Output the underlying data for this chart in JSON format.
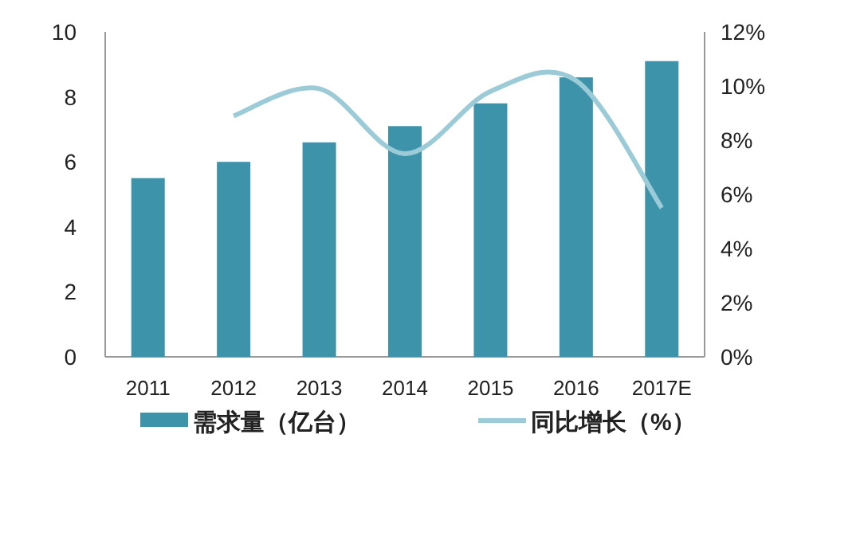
{
  "chart_data": {
    "type": "bar",
    "categories": [
      "2011",
      "2012",
      "2013",
      "2014",
      "2015",
      "2016",
      "2017E"
    ],
    "series": [
      {
        "name": "需求量（亿台）",
        "color": "#3d93aa",
        "values": [
          5.5,
          6.0,
          6.6,
          7.1,
          7.8,
          8.6,
          9.1
        ]
      },
      {
        "name": "同比增长（%）",
        "type": "line",
        "axis": "y2",
        "color": "#9ccbd8",
        "values": [
          null,
          8.9,
          9.9,
          7.5,
          9.8,
          10.2,
          5.5
        ]
      }
    ],
    "ylim": [
      0,
      10
    ],
    "yticks": [
      0,
      2,
      4,
      6,
      8,
      10
    ],
    "y2lim": [
      0,
      12
    ],
    "y2ticks": [
      {
        "value": 0,
        "label": "0%"
      },
      {
        "value": 2,
        "label": "2%"
      },
      {
        "value": 4,
        "label": "4%"
      },
      {
        "value": 6,
        "label": "6%"
      },
      {
        "value": 8,
        "label": "8%"
      },
      {
        "value": 10,
        "label": "10%"
      },
      {
        "value": 12,
        "label": "12%"
      }
    ],
    "legend": "bottom",
    "grid": false,
    "marker": "none",
    "line_style": "solid"
  }
}
